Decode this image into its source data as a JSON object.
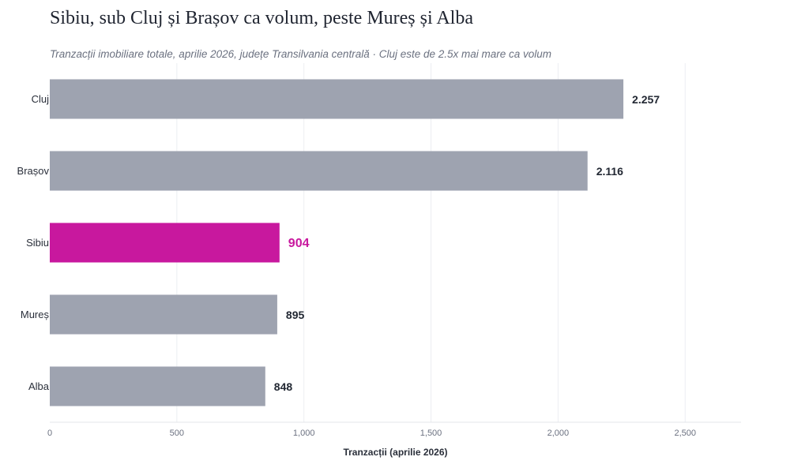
{
  "chart_data": {
    "type": "bar",
    "orientation": "horizontal",
    "title": "Sibiu, sub Cluj și Brașov ca volum, peste Mureș și Alba",
    "subtitle": "Tranzacții imobiliare totale, aprilie 2026, județe Transilvania centrală · Cluj este de 2.5x mai mare ca volum",
    "categories": [
      "Cluj",
      "Brașov",
      "Sibiu",
      "Mureș",
      "Alba"
    ],
    "values": [
      2257,
      2116,
      904,
      895,
      848
    ],
    "value_labels": [
      "2.257",
      "2.116",
      "904",
      "895",
      "848"
    ],
    "highlight": "Sibiu",
    "xlabel": "Tranzacții (aprilie 2026)",
    "ylabel": "",
    "xlim": [
      0,
      2720
    ],
    "x_ticks": [
      0,
      500,
      1000,
      1500,
      2000,
      2500
    ],
    "x_tick_labels": [
      "0",
      "500",
      "1,000",
      "1,500",
      "2,000",
      "2,500"
    ],
    "grid": "vertical",
    "colors": {
      "default": "#9ea3b0",
      "highlight": "#c8189e",
      "label_default": "#222833",
      "label_highlight": "#c8189e"
    }
  }
}
